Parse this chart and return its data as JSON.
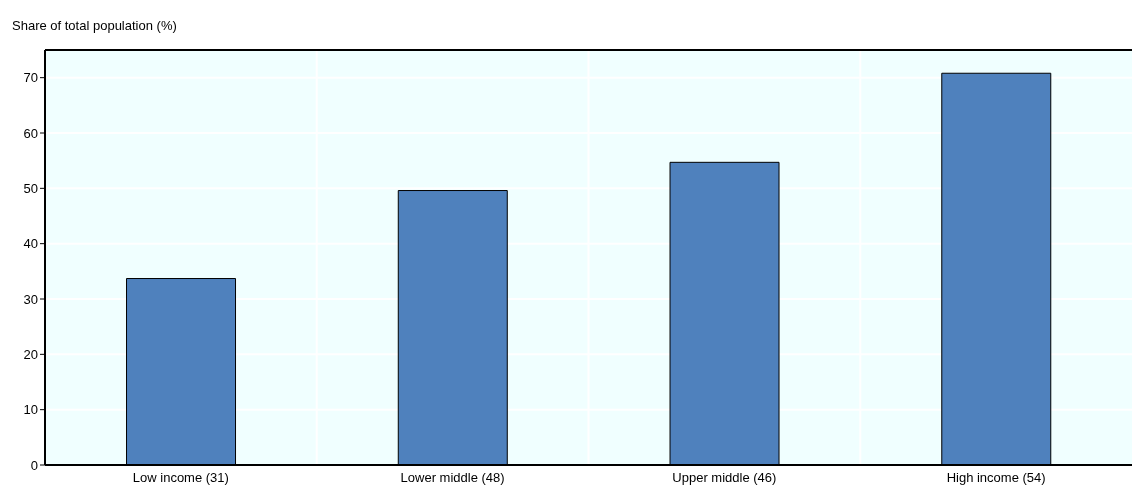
{
  "chart_data": {
    "type": "bar",
    "ylabel": "Share of total population (%)",
    "categories": [
      "Low income (31)",
      "Lower middle (48)",
      "Upper middle (46)",
      "High income (54)"
    ],
    "values": [
      33.7,
      49.6,
      54.7,
      70.8
    ],
    "color": "#4f81bd",
    "ylim": [
      0,
      75
    ],
    "yticks": [
      0,
      10,
      20,
      30,
      40,
      50,
      60,
      70
    ],
    "grid": true
  }
}
